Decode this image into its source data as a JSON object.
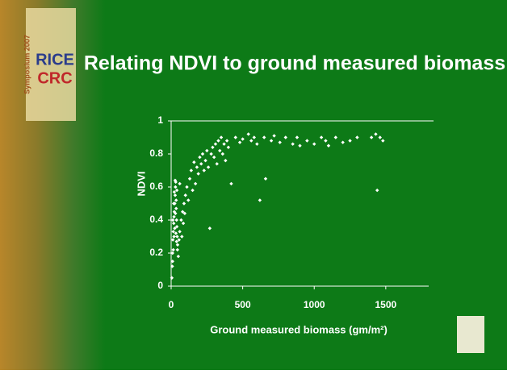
{
  "chart_data": {
    "type": "scatter",
    "title": "Relating NDVI to ground measured biomass",
    "x_label": "Ground measured biomass (gm/m²)",
    "y_label": "NDVI",
    "color": "#ffffff",
    "xlim": [
      0,
      1800
    ],
    "xticks": [
      0,
      500,
      1000,
      1500
    ],
    "ylim": [
      0,
      1
    ],
    "yticks": [
      0,
      0.2,
      0.4,
      0.6,
      0.8,
      1
    ],
    "grid": false,
    "x": [
      5,
      8,
      10,
      12,
      15,
      18,
      20,
      22,
      25,
      28,
      30,
      32,
      35,
      38,
      40,
      42,
      45,
      10,
      15,
      20,
      25,
      30,
      35,
      40,
      12,
      18,
      22,
      28,
      33,
      38,
      44,
      50,
      55,
      60,
      70,
      80,
      90,
      100,
      60,
      75,
      85,
      95,
      110,
      120,
      130,
      140,
      150,
      160,
      170,
      180,
      190,
      200,
      210,
      220,
      230,
      240,
      250,
      260,
      270,
      280,
      290,
      300,
      310,
      320,
      330,
      340,
      350,
      360,
      370,
      380,
      390,
      400,
      420,
      450,
      480,
      500,
      540,
      560,
      580,
      600,
      620,
      650,
      660,
      700,
      720,
      760,
      800,
      850,
      880,
      900,
      950,
      1000,
      1050,
      1080,
      1100,
      1150,
      1200,
      1250,
      1300,
      1400,
      1430,
      1440,
      1460,
      1480
    ],
    "y": [
      0.05,
      0.12,
      0.2,
      0.28,
      0.33,
      0.38,
      0.42,
      0.45,
      0.5,
      0.55,
      0.6,
      0.63,
      0.47,
      0.4,
      0.36,
      0.3,
      0.25,
      0.15,
      0.22,
      0.3,
      0.35,
      0.44,
      0.52,
      0.58,
      0.4,
      0.5,
      0.57,
      0.64,
      0.32,
      0.27,
      0.22,
      0.18,
      0.28,
      0.33,
      0.4,
      0.45,
      0.5,
      0.55,
      0.62,
      0.3,
      0.38,
      0.44,
      0.6,
      0.52,
      0.65,
      0.7,
      0.58,
      0.75,
      0.62,
      0.72,
      0.68,
      0.78,
      0.74,
      0.8,
      0.7,
      0.76,
      0.82,
      0.72,
      0.35,
      0.8,
      0.84,
      0.78,
      0.86,
      0.74,
      0.88,
      0.82,
      0.9,
      0.8,
      0.86,
      0.76,
      0.88,
      0.84,
      0.62,
      0.9,
      0.87,
      0.89,
      0.92,
      0.88,
      0.9,
      0.86,
      0.52,
      0.9,
      0.65,
      0.88,
      0.91,
      0.87,
      0.9,
      0.86,
      0.9,
      0.85,
      0.88,
      0.86,
      0.9,
      0.88,
      0.85,
      0.9,
      0.87,
      0.88,
      0.9,
      0.9,
      0.92,
      0.58,
      0.9,
      0.88
    ]
  },
  "logo": {
    "event": "Symposium 2007",
    "line1": "RICE",
    "line2": "CRC"
  }
}
